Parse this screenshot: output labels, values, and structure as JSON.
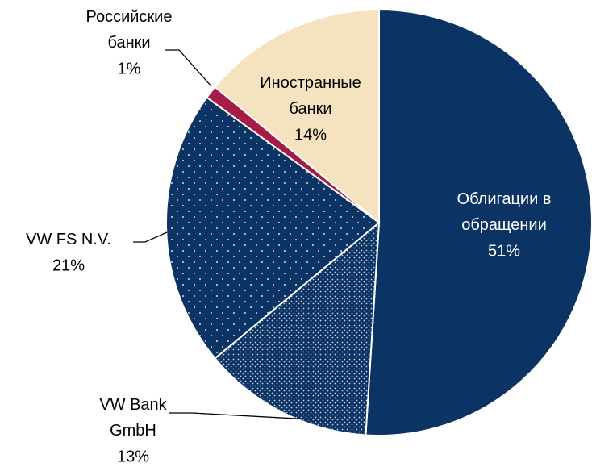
{
  "chart_data": {
    "type": "pie",
    "categories": [
      "Облигации в\nобращении",
      "VW Bank\nGmbH",
      "VW FS N.V.",
      "Российские\nбанки",
      "Иностранные\nбанки"
    ],
    "values": [
      51,
      13,
      21,
      1,
      14
    ],
    "value_labels": [
      "51%",
      "13%",
      "21%",
      "1%",
      "14%"
    ],
    "colors": [
      "#0b3364",
      "#0b3364",
      "#0b3364",
      "#a51c48",
      "#f5e3bf"
    ],
    "patterns": [
      null,
      "dense-dots",
      "sparse-dots",
      null,
      null
    ]
  }
}
